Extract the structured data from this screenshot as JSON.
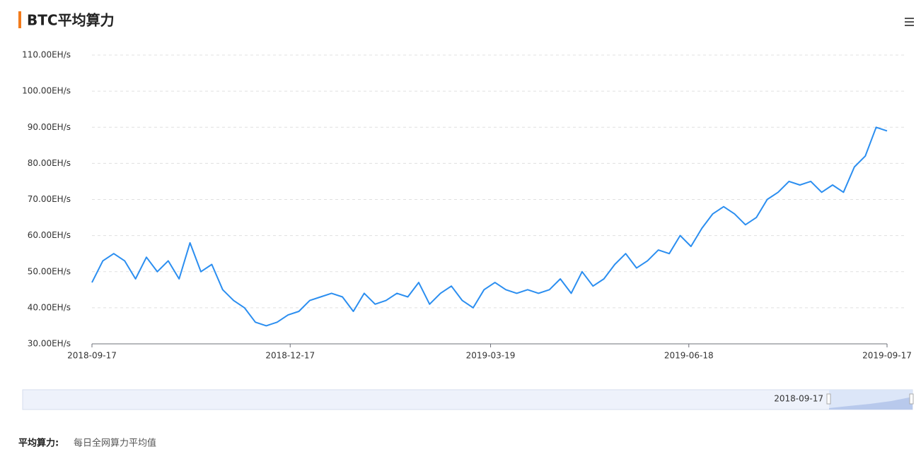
{
  "chart_data": {
    "type": "line",
    "title": "BTC平均算力",
    "x": [
      "2018-09-17",
      "2018-09-22",
      "2018-09-27",
      "2018-10-02",
      "2018-10-07",
      "2018-10-12",
      "2018-10-17",
      "2018-10-22",
      "2018-10-27",
      "2018-11-01",
      "2018-11-06",
      "2018-11-11",
      "2018-11-16",
      "2018-11-21",
      "2018-11-26",
      "2018-12-01",
      "2018-12-06",
      "2018-12-11",
      "2018-12-16",
      "2018-12-21",
      "2018-12-26",
      "2018-12-31",
      "2019-01-05",
      "2019-01-10",
      "2019-01-15",
      "2019-01-20",
      "2019-01-25",
      "2019-01-30",
      "2019-02-04",
      "2019-02-09",
      "2019-02-14",
      "2019-02-19",
      "2019-02-24",
      "2019-03-01",
      "2019-03-06",
      "2019-03-11",
      "2019-03-16",
      "2019-03-21",
      "2019-03-26",
      "2019-03-31",
      "2019-04-05",
      "2019-04-10",
      "2019-04-15",
      "2019-04-20",
      "2019-04-25",
      "2019-04-30",
      "2019-05-05",
      "2019-05-10",
      "2019-05-15",
      "2019-05-20",
      "2019-05-25",
      "2019-05-30",
      "2019-06-04",
      "2019-06-09",
      "2019-06-14",
      "2019-06-19",
      "2019-06-24",
      "2019-06-29",
      "2019-07-04",
      "2019-07-09",
      "2019-07-14",
      "2019-07-19",
      "2019-07-24",
      "2019-07-29",
      "2019-08-03",
      "2019-08-08",
      "2019-08-13",
      "2019-08-18",
      "2019-08-23",
      "2019-08-28",
      "2019-09-02",
      "2019-09-07",
      "2019-09-12",
      "2019-09-17"
    ],
    "values": [
      47,
      53,
      55,
      53,
      48,
      54,
      50,
      53,
      48,
      58,
      50,
      52,
      45,
      42,
      40,
      36,
      35,
      36,
      38,
      39,
      42,
      43,
      44,
      43,
      39,
      44,
      41,
      42,
      44,
      43,
      47,
      41,
      44,
      46,
      42,
      40,
      45,
      47,
      45,
      44,
      45,
      44,
      45,
      48,
      44,
      50,
      46,
      48,
      52,
      55,
      51,
      53,
      56,
      55,
      60,
      57,
      62,
      66,
      68,
      66,
      63,
      65,
      70,
      72,
      75,
      74,
      75,
      72,
      74,
      72,
      79,
      82,
      90,
      89
    ],
    "color": "#2b8ef0",
    "xlim": [
      "2018-09-17",
      "2019-09-17"
    ],
    "xticks": [
      "2018-09-17",
      "2018-12-17",
      "2019-03-19",
      "2019-06-18",
      "2019-09-17"
    ],
    "ylim": [
      30,
      110
    ],
    "yticks": [
      {
        "value": 30,
        "label": "30.00EH/s"
      },
      {
        "value": 40,
        "label": "40.00EH/s"
      },
      {
        "value": 50,
        "label": "50.00EH/s"
      },
      {
        "value": 60,
        "label": "60.00EH/s"
      },
      {
        "value": 70,
        "label": "70.00EH/s"
      },
      {
        "value": 80,
        "label": "80.00EH/s"
      },
      {
        "value": 90,
        "label": "90.00EH/s"
      },
      {
        "value": 100,
        "label": "100.00EH/s"
      },
      {
        "value": 110,
        "label": "110.00EH/s"
      }
    ],
    "grid": true,
    "slider_label": "2018-09-17",
    "note_term": "平均算力:",
    "note_text": "每日全网算力平均值"
  }
}
